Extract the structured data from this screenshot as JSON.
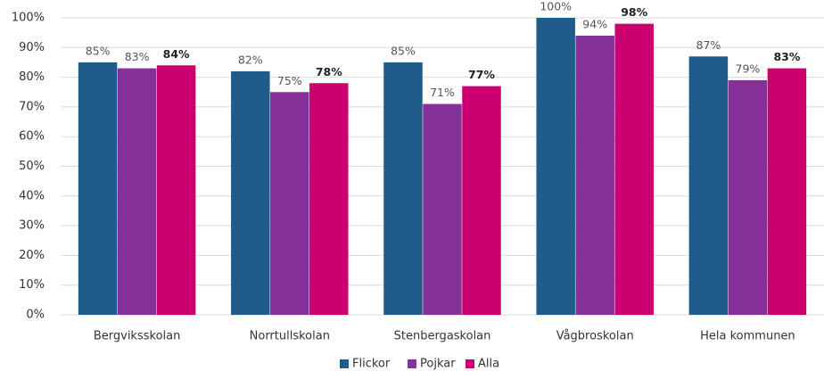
{
  "chart_data": {
    "type": "bar",
    "categories": [
      "Bergviksskolan",
      "Norrtullskolan",
      "Stenbergaskolan",
      "Vågbroskolan",
      "Hela kommunen"
    ],
    "series": [
      {
        "name": "Flickor",
        "color": "#1f5c8c",
        "values": [
          85,
          82,
          85,
          100,
          87
        ],
        "value_labels": [
          "85%",
          "82%",
          "85%",
          "100%",
          "87%"
        ]
      },
      {
        "name": "Pojkar",
        "color": "#86309a",
        "values": [
          83,
          75,
          71,
          94,
          79
        ],
        "value_labels": [
          "83%",
          "75%",
          "71%",
          "94%",
          "79%"
        ]
      },
      {
        "name": "Alla",
        "color": "#cc0070",
        "values": [
          84,
          78,
          77,
          98,
          83
        ],
        "value_labels": [
          "84%",
          "78%",
          "77%",
          "98%",
          "83%"
        ]
      }
    ],
    "ylim": [
      0,
      100
    ],
    "yticks": [
      {
        "value": 0,
        "label": "0%"
      },
      {
        "value": 10,
        "label": "10%"
      },
      {
        "value": 20,
        "label": "20%"
      },
      {
        "value": 30,
        "label": "30%"
      },
      {
        "value": 40,
        "label": "40%"
      },
      {
        "value": 50,
        "label": "50%"
      },
      {
        "value": 60,
        "label": "60%"
      },
      {
        "value": 70,
        "label": "70%"
      },
      {
        "value": 80,
        "label": "80%"
      },
      {
        "value": 90,
        "label": "90%"
      },
      {
        "value": 100,
        "label": "100%"
      }
    ],
    "grid": true,
    "legend": "bottom"
  }
}
